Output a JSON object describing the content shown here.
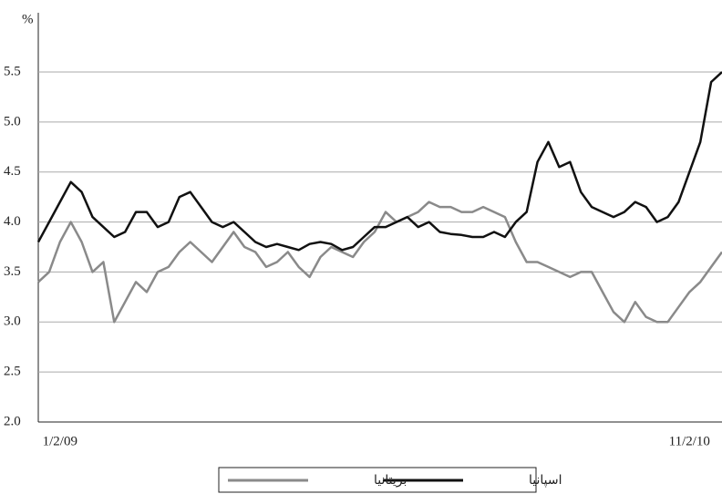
{
  "chart_data": {
    "type": "line",
    "y_label": "%",
    "categories": [
      null,
      null,
      "1/2/09",
      null,
      null,
      null,
      null,
      null,
      null,
      null,
      null,
      null,
      null,
      null,
      null,
      null,
      null,
      null,
      null,
      null,
      null,
      null,
      null,
      null,
      null,
      null,
      null,
      null,
      null,
      null,
      null,
      null,
      null,
      null,
      null,
      null,
      null,
      null,
      null,
      null,
      null,
      null,
      null,
      null,
      null,
      null,
      null,
      null,
      null,
      null,
      null,
      null,
      null,
      null,
      null,
      null,
      null,
      null,
      null,
      null,
      "11/2/10",
      null,
      null,
      null
    ],
    "series": [
      {
        "name": "اسپانيا",
        "color": "#111111",
        "values": [
          3.8,
          4.0,
          4.2,
          4.4,
          4.3,
          4.05,
          3.95,
          3.85,
          3.9,
          4.1,
          4.1,
          3.95,
          4.0,
          4.25,
          4.3,
          4.15,
          4.0,
          3.95,
          4.0,
          3.9,
          3.8,
          3.75,
          3.78,
          3.75,
          3.72,
          3.78,
          3.8,
          3.78,
          3.72,
          3.75,
          3.85,
          3.95,
          3.95,
          4.0,
          4.05,
          3.95,
          4.0,
          3.9,
          3.88,
          3.87,
          3.85,
          3.85,
          3.9,
          3.85,
          4.0,
          4.1,
          4.6,
          4.8,
          4.55,
          4.6,
          4.3,
          4.15,
          4.1,
          4.05,
          4.1,
          4.2,
          4.15,
          4.0,
          4.05,
          4.2,
          4.5,
          4.8,
          5.4,
          5.5
        ]
      },
      {
        "name": "بريتانيا",
        "color": "#8a8a8a",
        "values": [
          3.4,
          3.5,
          3.8,
          4.0,
          3.8,
          3.5,
          3.6,
          3.0,
          3.2,
          3.4,
          3.3,
          3.5,
          3.55,
          3.7,
          3.8,
          3.7,
          3.6,
          3.75,
          3.9,
          3.75,
          3.7,
          3.55,
          3.6,
          3.7,
          3.55,
          3.45,
          3.65,
          3.75,
          3.7,
          3.65,
          3.8,
          3.9,
          4.1,
          4.0,
          4.05,
          4.1,
          4.2,
          4.15,
          4.15,
          4.1,
          4.1,
          4.15,
          4.1,
          4.05,
          3.8,
          3.6,
          3.6,
          3.55,
          3.5,
          3.45,
          3.5,
          3.5,
          3.3,
          3.1,
          3.0,
          3.2,
          3.05,
          3.0,
          3.0,
          3.15,
          3.3,
          3.4,
          3.55,
          3.7
        ]
      }
    ],
    "ylim": [
      2.0,
      5.5
    ],
    "yticks": [
      {
        "value": 2.0,
        "label": "2.0"
      },
      2.5,
      {
        "value": 3.0,
        "label": "3.0"
      },
      3.5,
      {
        "value": 4.0,
        "label": "4.0"
      },
      4.5,
      {
        "value": 5.0,
        "label": "5.0"
      },
      5.5
    ],
    "grid": true
  }
}
